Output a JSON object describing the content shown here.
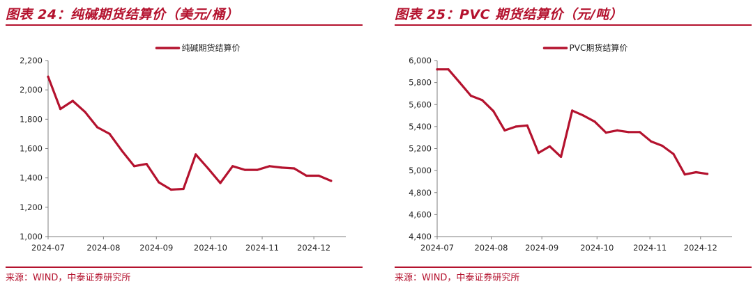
{
  "chart_data": [
    {
      "type": "line",
      "title": "图表 24：纯碱期货结算价（美元/桶）",
      "source": "来源：WIND，中泰证券研究所",
      "legend": "纯碱期货结算价",
      "legend_position": "top-center",
      "ylim": [
        1000,
        2200
      ],
      "yticks": [
        "1,000",
        "1,200",
        "1,400",
        "1,600",
        "1,800",
        "2,000",
        "2,200"
      ],
      "xlim": [
        0,
        24.2
      ],
      "xticks": [
        {
          "label": "2024-07",
          "at": 0
        },
        {
          "label": "2024-08",
          "at": 4.5
        },
        {
          "label": "2024-09",
          "at": 8.8
        },
        {
          "label": "2024-10",
          "at": 13.2
        },
        {
          "label": "2024-11",
          "at": 17.4
        },
        {
          "label": "2024-12",
          "at": 21.6
        }
      ],
      "color": "#b4122e",
      "series": [
        {
          "name": "纯碱期货结算价",
          "values": [
            2090,
            1870,
            1925,
            1850,
            1745,
            1700,
            1585,
            1480,
            1495,
            1370,
            1320,
            1325,
            1560,
            1465,
            1365,
            1480,
            1455,
            1455,
            1480,
            1470,
            1465,
            1415,
            1415,
            1380
          ]
        }
      ]
    },
    {
      "type": "line",
      "title": "图表 25：PVC 期货结算价（元/吨）",
      "source": "来源：WIND，中泰证券研究所",
      "legend": "PVC期货结算价",
      "legend_position": "top-center",
      "ylim": [
        4400,
        6000
      ],
      "yticks": [
        "4,400",
        "4,600",
        "4,800",
        "5,000",
        "5,200",
        "5,400",
        "5,600",
        "5,800",
        "6,000"
      ],
      "xlim": [
        0,
        26.2
      ],
      "xticks": [
        {
          "label": "2024-07",
          "at": 0
        },
        {
          "label": "2024-08",
          "at": 4.8
        },
        {
          "label": "2024-09",
          "at": 9.3
        },
        {
          "label": "2024-10",
          "at": 14.2
        },
        {
          "label": "2024-11",
          "at": 18.9
        },
        {
          "label": "2024-12",
          "at": 23.4
        }
      ],
      "color": "#b4122e",
      "series": [
        {
          "name": "PVC期货结算价",
          "values": [
            5920,
            5920,
            5800,
            5680,
            5640,
            5540,
            5365,
            5400,
            5410,
            5160,
            5220,
            5125,
            5545,
            5500,
            5445,
            5345,
            5365,
            5350,
            5350,
            5265,
            5225,
            5150,
            4965,
            4985,
            4970
          ]
        }
      ]
    }
  ]
}
